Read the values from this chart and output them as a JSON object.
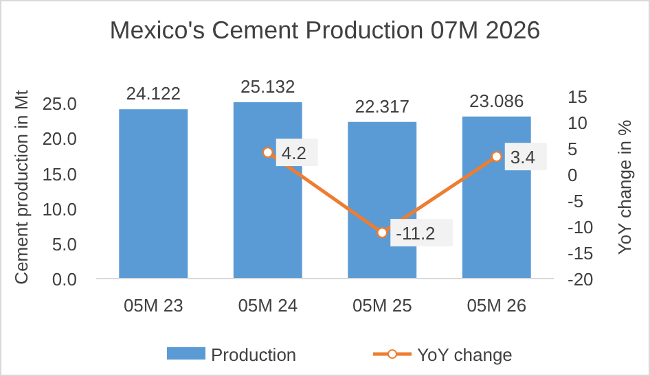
{
  "chart_data": {
    "type": "bar",
    "title": "Mexico's Cement Production 07M 2026",
    "ylabel": "Cement production in Mt",
    "y2label": "YoY change in %",
    "categories": [
      "05M 23",
      "05M 24",
      "05M 25",
      "05M 26"
    ],
    "series": [
      {
        "name": "Production",
        "color": "#5b9bd5",
        "values": [
          24.122,
          25.132,
          22.317,
          23.086
        ]
      },
      {
        "name": "YoY change",
        "type": "line",
        "axis": "y2",
        "color": "#ed7d31",
        "marker": "circle",
        "values": [
          null,
          4.2,
          -11.2,
          3.4
        ]
      }
    ],
    "ylim": [
      0,
      26
    ],
    "yticks": [
      {
        "value": 0,
        "label": "0.0"
      },
      {
        "value": 5,
        "label": "5.0"
      },
      {
        "value": 10,
        "label": "10.0"
      },
      {
        "value": 15,
        "label": "15.0"
      },
      {
        "value": 20,
        "label": "20.0"
      },
      {
        "value": 25,
        "label": "25.0"
      }
    ],
    "y2lim": [
      -20,
      15
    ],
    "y2ticks": [
      -20,
      -15,
      -10,
      -5,
      0,
      5,
      10,
      15
    ],
    "data_labels": true,
    "legend": "bottom",
    "grid": false
  }
}
